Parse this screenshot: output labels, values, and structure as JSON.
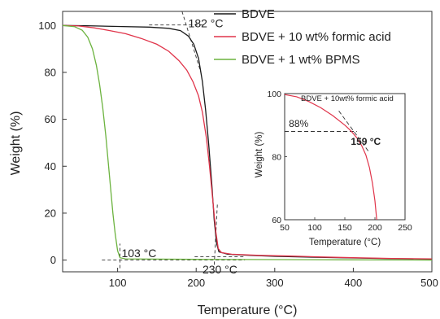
{
  "chart_data": [
    {
      "type": "line",
      "xlabel": "Temperature (°C)",
      "ylabel": "Weight (%)",
      "xlim": [
        30,
        500
      ],
      "ylim": [
        -5,
        106
      ],
      "xticks": [
        100,
        200,
        300,
        400,
        500
      ],
      "yticks": [
        0,
        20,
        40,
        60,
        80,
        100
      ],
      "legend_position": "top-right",
      "series": [
        {
          "name": "BDVE",
          "color": "#1a1a1a",
          "points": [
            [
              30,
              100
            ],
            [
              60,
              99.9
            ],
            [
              100,
              99.6
            ],
            [
              140,
              99.3
            ],
            [
              165,
              98.8
            ],
            [
              180,
              97.8
            ],
            [
              190,
              95.5
            ],
            [
              197,
              92
            ],
            [
              203,
              86
            ],
            [
              208,
              76
            ],
            [
              212,
              64
            ],
            [
              216,
              49
            ],
            [
              220,
              32
            ],
            [
              223,
              17
            ],
            [
              226,
              7
            ],
            [
              229,
              3.5
            ],
            [
              240,
              2.5
            ],
            [
              270,
              2
            ],
            [
              300,
              1.6
            ],
            [
              350,
              1.2
            ],
            [
              400,
              0.9
            ],
            [
              450,
              0.6
            ],
            [
              500,
              0.4
            ]
          ]
        },
        {
          "name": "BDVE + 10 wt% formic acid",
          "color": "#e0344a",
          "points": [
            [
              30,
              100
            ],
            [
              50,
              99.8
            ],
            [
              70,
              99
            ],
            [
              90,
              97.8
            ],
            [
              110,
              96.5
            ],
            [
              130,
              94.5
            ],
            [
              150,
              92
            ],
            [
              165,
              89
            ],
            [
              178,
              85
            ],
            [
              188,
              81
            ],
            [
              196,
              76
            ],
            [
              203,
              70
            ],
            [
              208,
              63
            ],
            [
              213,
              52
            ],
            [
              217,
              40
            ],
            [
              221,
              26
            ],
            [
              225,
              12
            ],
            [
              228,
              5
            ],
            [
              232,
              3.2
            ],
            [
              245,
              2.5
            ],
            [
              280,
              2
            ],
            [
              320,
              1.7
            ],
            [
              360,
              1.3
            ],
            [
              400,
              1
            ],
            [
              450,
              0.7
            ],
            [
              500,
              0.5
            ]
          ]
        },
        {
          "name": "BDVE + 1 wt% BPMS",
          "color": "#6cb33f",
          "points": [
            [
              30,
              100
            ],
            [
              45,
              99.5
            ],
            [
              55,
              98
            ],
            [
              62,
              95
            ],
            [
              68,
              90
            ],
            [
              73,
              83
            ],
            [
              77,
              75
            ],
            [
              81,
              65
            ],
            [
              85,
              53
            ],
            [
              88,
              42
            ],
            [
              91,
              31
            ],
            [
              94,
              20
            ],
            [
              97,
              11
            ],
            [
              100,
              4
            ],
            [
              103,
              1
            ],
            [
              110,
              0.5
            ],
            [
              150,
              0.4
            ],
            [
              200,
              0.3
            ],
            [
              300,
              0.2
            ],
            [
              400,
              0.1
            ],
            [
              500,
              0
            ]
          ]
        }
      ],
      "annotations": [
        {
          "text": "182 °C",
          "x": 190,
          "y": 101
        },
        {
          "text": "103 °C",
          "x": 105,
          "y": 3
        },
        {
          "text": "230 °C",
          "x": 208,
          "y": -4
        }
      ]
    },
    {
      "type": "line",
      "inset": true,
      "title": "BDVE + 10wt% formic acid",
      "xlabel": "Temperature (°C)",
      "ylabel": "Weight (%)",
      "xlim": [
        50,
        250
      ],
      "ylim": [
        60,
        100
      ],
      "xticks": [
        50,
        100,
        150,
        200,
        250
      ],
      "yticks": [
        60,
        80,
        100
      ],
      "series": [
        {
          "name": "",
          "color": "#e0344a",
          "points": [
            [
              50,
              99.7
            ],
            [
              70,
              99
            ],
            [
              90,
              97.5
            ],
            [
              110,
              95.5
            ],
            [
              130,
              93
            ],
            [
              150,
              90
            ],
            [
              160,
              88.2
            ],
            [
              170,
              86
            ],
            [
              178,
              83.5
            ],
            [
              185,
              80.5
            ],
            [
              191,
              76.5
            ],
            [
              196,
              71.5
            ],
            [
              200,
              66
            ],
            [
              203,
              60
            ]
          ]
        }
      ],
      "annotations": [
        {
          "text": "88%",
          "x": 57,
          "y": 90.5
        },
        {
          "text": "159 °C",
          "x": 160,
          "y": 84.8
        }
      ]
    }
  ]
}
